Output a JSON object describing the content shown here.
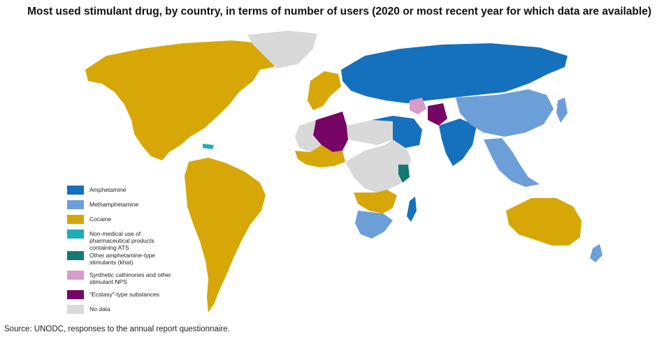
{
  "title": "Most used stimulant drug, by country, in terms of number of users  (2020 or most recent year for which data are available)",
  "source": "Source: UNODC, responses to the annual report questionnaire.",
  "colors": {
    "amphetamine": "#1570bd",
    "methamphetamine": "#6c9fd8",
    "cocaine": "#d6a707",
    "pharmaceutical": "#19aeb8",
    "khat": "#137a72",
    "cathinones": "#d99bca",
    "ecstasy": "#770565",
    "nodata": "#d9d9d9"
  },
  "legend": [
    {
      "key": "amphetamine",
      "label": "Amphetamine",
      "icon": "swatch"
    },
    {
      "key": "methamphetamine",
      "label": "Methamphetamine",
      "icon": "swatch"
    },
    {
      "key": "cocaine",
      "label": "Cocaine",
      "icon": "swatch"
    },
    {
      "key": "pharmaceutical",
      "label": "Non-medical use of pharmaceutical products containing ATS",
      "icon": "swatch"
    },
    {
      "key": "khat",
      "label": "Other amphetamine-type stimulants (khat)",
      "icon": "swatch"
    },
    {
      "key": "cathinones",
      "label": "Synthetic cathinones and other stimulant NPS",
      "icon": "swatch"
    },
    {
      "key": "ecstasy",
      "label": "\"Ecstasy\"-type substances",
      "icon": "swatch"
    },
    {
      "key": "nodata",
      "label": "No data",
      "icon": "swatch"
    }
  ]
}
